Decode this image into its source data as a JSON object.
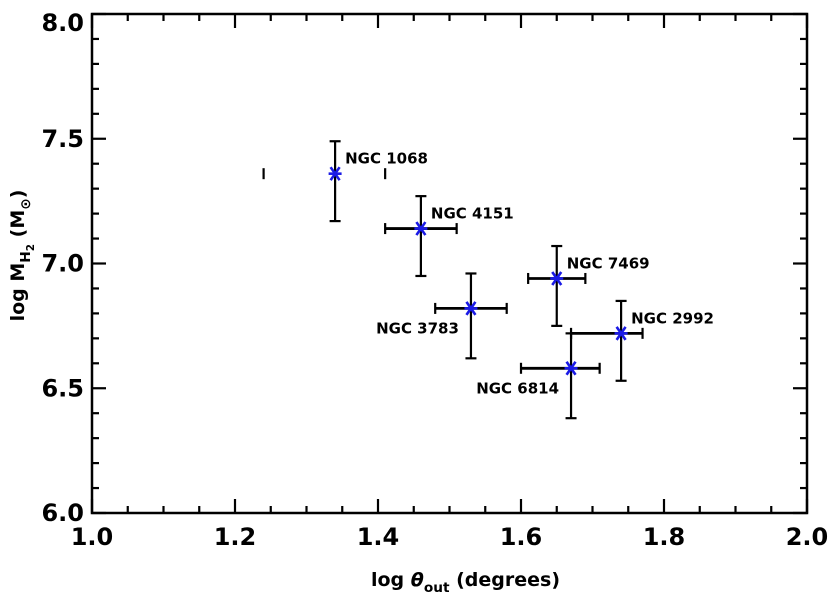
{
  "figure": {
    "background_color": "#ffffff",
    "axis_color": "#000000",
    "text_color": "#000000"
  },
  "chart_data": {
    "type": "scatter",
    "title": "",
    "xlabel": "log θ_out (degrees)",
    "ylabel": "log M_H2 (M_sun)",
    "xlabel_parts": [
      {
        "t": "log ",
        "style": "normal"
      },
      {
        "t": "θ",
        "style": "italic"
      },
      {
        "t": "out",
        "style": "sub"
      },
      {
        "t": " (degrees)",
        "style": "normal"
      }
    ],
    "ylabel_parts": [
      {
        "t": "log M",
        "style": "normal"
      },
      {
        "t": "H",
        "style": "sub"
      },
      {
        "t": "2",
        "style": "subsub"
      },
      {
        "t": " (M",
        "style": "normal"
      },
      {
        "t": "⊙",
        "style": "sub"
      },
      {
        "t": ")",
        "style": "normal"
      }
    ],
    "xlim": [
      1.0,
      2.0
    ],
    "ylim": [
      6.0,
      8.0
    ],
    "x_ticks": [
      {
        "v": 1.0,
        "label": "1.0"
      },
      {
        "v": 1.2,
        "label": "1.2"
      },
      {
        "v": 1.4,
        "label": "1.4"
      },
      {
        "v": 1.6,
        "label": "1.6"
      },
      {
        "v": 1.8,
        "label": "1.8"
      },
      {
        "v": 2.0,
        "label": "2.0"
      }
    ],
    "y_ticks": [
      {
        "v": 8.0,
        "label": "8.0"
      },
      {
        "v": 7.5,
        "label": "7.5"
      },
      {
        "v": 7.0,
        "label": "7.0"
      },
      {
        "v": 6.5,
        "label": "6.5"
      },
      {
        "v": 6.0,
        "label": "6.0"
      }
    ],
    "x_minor_step": 0.05,
    "y_minor_step": 0.1,
    "grid": false,
    "legend": "none",
    "marker": "asterisk",
    "marker_color": "#1a1ae6",
    "errorbar_color": "#000000",
    "points": [
      {
        "name": "NGC 1068",
        "x": 1.34,
        "y": 7.36,
        "x_err_lo": 1.24,
        "x_err_hi": 1.41,
        "y_err_lo": 7.17,
        "y_err_hi": 7.49,
        "x_line": false,
        "label_side": "ne"
      },
      {
        "name": "NGC 4151",
        "x": 1.46,
        "y": 7.14,
        "x_err_lo": 1.41,
        "x_err_hi": 1.51,
        "y_err_lo": 6.95,
        "y_err_hi": 7.27,
        "x_line": true,
        "label_side": "ne"
      },
      {
        "name": "NGC 3783",
        "x": 1.53,
        "y": 6.82,
        "x_err_lo": 1.48,
        "x_err_hi": 1.58,
        "y_err_lo": 6.62,
        "y_err_hi": 6.96,
        "x_line": true,
        "label_side": "sw"
      },
      {
        "name": "NGC 7469",
        "x": 1.65,
        "y": 6.94,
        "x_err_lo": 1.61,
        "x_err_hi": 1.69,
        "y_err_lo": 6.75,
        "y_err_hi": 7.07,
        "x_line": true,
        "label_side": "ne"
      },
      {
        "name": "NGC 6814",
        "x": 1.67,
        "y": 6.58,
        "x_err_lo": 1.6,
        "x_err_hi": 1.71,
        "y_err_lo": 6.38,
        "y_err_hi": 6.72,
        "x_line": true,
        "label_side": "sw"
      },
      {
        "name": "NGC 2992",
        "x": 1.74,
        "y": 6.72,
        "x_err_lo": 1.67,
        "x_err_hi": 1.77,
        "y_err_lo": 6.53,
        "y_err_hi": 6.85,
        "x_line": true,
        "label_side": "ne"
      }
    ]
  }
}
